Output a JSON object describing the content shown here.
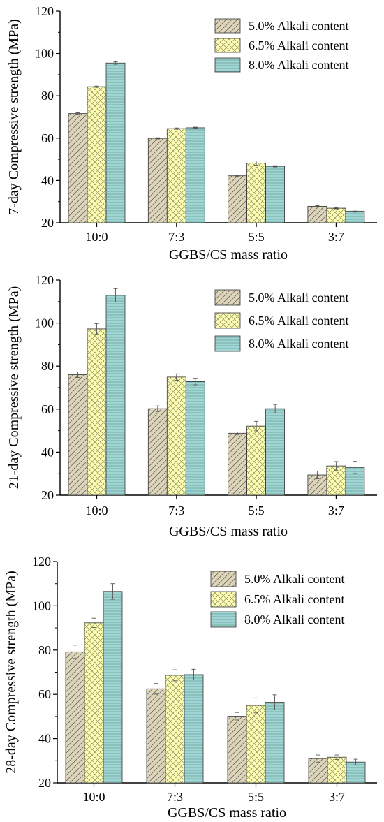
{
  "chart_data": [
    {
      "type": "bar",
      "categories": [
        "10:0",
        "7:3",
        "5:5",
        "3:7"
      ],
      "xlabel": "GGBS/CS mass ratio",
      "ylabel": "7-day Compressive strength (MPa)",
      "ylim": [
        20,
        120
      ],
      "yticks": [
        20,
        40,
        60,
        80,
        100,
        120
      ],
      "grid": false,
      "legend_position": "top-right",
      "series": [
        {
          "name": "5.0% Alkali content",
          "values": [
            71.6,
            59.9,
            42.2,
            27.8
          ],
          "errors": [
            0.4,
            0.3,
            0.3,
            0.3
          ]
        },
        {
          "name": "6.5% Alkali content",
          "values": [
            84.3,
            64.5,
            48.2,
            26.9
          ],
          "errors": [
            0.3,
            0.3,
            1.0,
            0.3
          ]
        },
        {
          "name": "8.0% Alkali content",
          "values": [
            95.5,
            64.9,
            46.7,
            25.5
          ],
          "errors": [
            0.6,
            0.3,
            0.3,
            0.5
          ]
        }
      ]
    },
    {
      "type": "bar",
      "categories": [
        "10:0",
        "7:3",
        "5:5",
        "3:7"
      ],
      "xlabel": "GGBS/CS mass ratio",
      "ylabel": "21-day Compressive strength (MPa)",
      "ylim": [
        20,
        120
      ],
      "yticks": [
        20,
        40,
        60,
        80,
        100,
        120
      ],
      "grid": false,
      "legend_position": "top-right",
      "series": [
        {
          "name": "5.0% Alkali content",
          "values": [
            76.0,
            60.2,
            48.8,
            29.4
          ],
          "errors": [
            1.3,
            1.3,
            0.6,
            1.8
          ]
        },
        {
          "name": "6.5% Alkali content",
          "values": [
            97.3,
            74.9,
            52.1,
            33.6
          ],
          "errors": [
            2.4,
            1.5,
            2.2,
            2.0
          ]
        },
        {
          "name": "8.0% Alkali content",
          "values": [
            112.9,
            72.8,
            60.2,
            32.9
          ],
          "errors": [
            3.1,
            1.5,
            2.0,
            2.8
          ]
        }
      ]
    },
    {
      "type": "bar",
      "categories": [
        "10:0",
        "7:3",
        "5:5",
        "3:7"
      ],
      "xlabel": "GGBS/CS mass ratio",
      "ylabel": "28-day Compressive strength (MPa)",
      "ylim": [
        20,
        120
      ],
      "yticks": [
        20,
        40,
        60,
        80,
        100,
        120
      ],
      "grid": false,
      "legend_position": "top-right",
      "series": [
        {
          "name": "5.0% Alkali content",
          "values": [
            79.2,
            62.5,
            50.1,
            31.0
          ],
          "errors": [
            3.0,
            2.4,
            1.7,
            1.6
          ]
        },
        {
          "name": "6.5% Alkali content",
          "values": [
            92.3,
            68.6,
            55.0,
            31.6
          ],
          "errors": [
            2.1,
            2.5,
            3.4,
            1.0
          ]
        },
        {
          "name": "8.0% Alkali content",
          "values": [
            106.5,
            68.9,
            56.4,
            29.4
          ],
          "errors": [
            3.5,
            2.4,
            3.4,
            1.3
          ]
        }
      ]
    }
  ],
  "series_styles": [
    {
      "fill": "#ddd5bb",
      "hatch_color": "#6e6756",
      "hatch": "diagonal"
    },
    {
      "fill": "#ffffb4",
      "hatch_color": "#8e8e62",
      "hatch": "crosshatch"
    },
    {
      "fill": "#9fd5d2",
      "hatch_color": "#5e8e8b",
      "hatch": "horizontal"
    }
  ],
  "colors": {
    "axis": "#000000",
    "bar_edge": "#333333",
    "error_bar": "#555555"
  }
}
